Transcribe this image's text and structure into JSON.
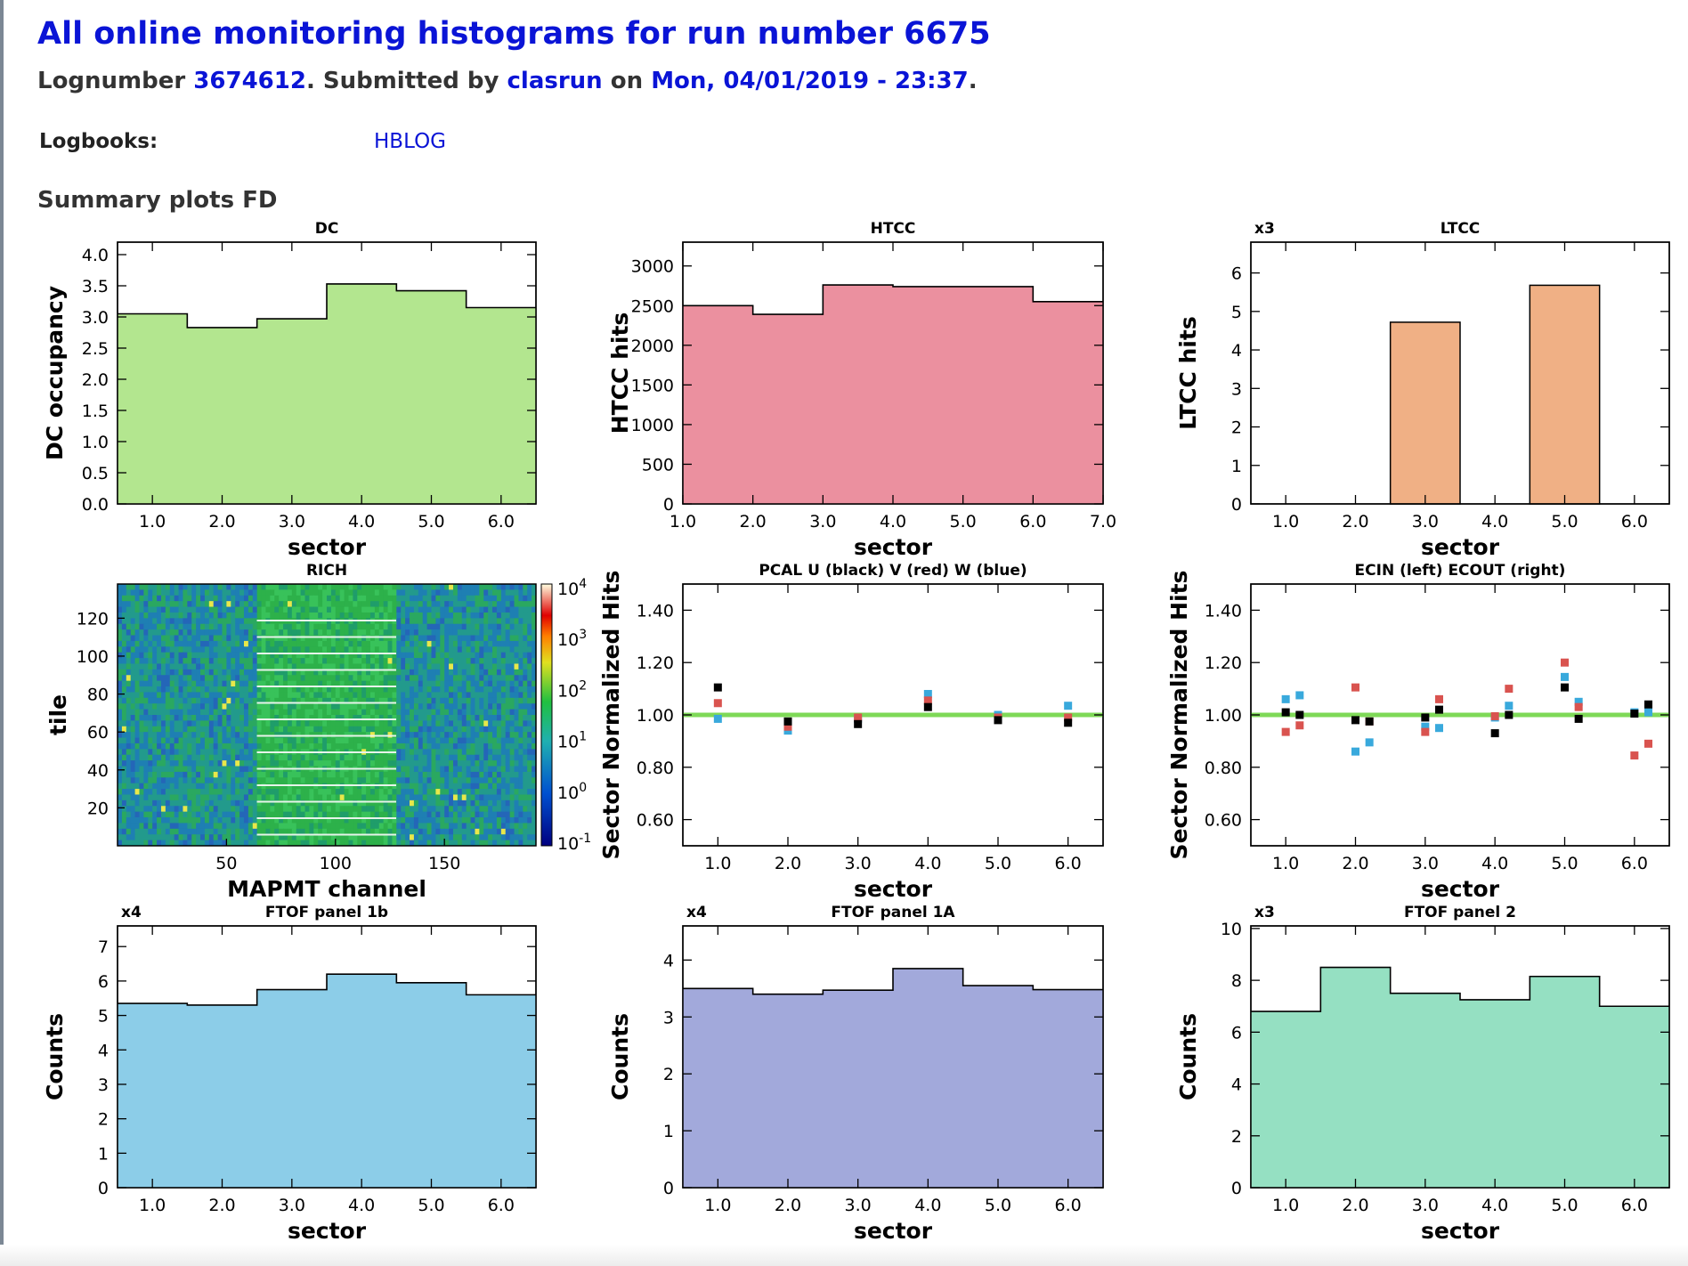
{
  "header": {
    "title": "All online monitoring histograms for run number 6675",
    "lognumber_label": "Lognumber",
    "lognumber": "3674612",
    "submitted_label": ". Submitted by",
    "submitter": "clasrun",
    "on_label": "on",
    "date": "Mon, 04/01/2019 - 23:37",
    "end": "."
  },
  "logbooks": {
    "label": "Logbooks:",
    "value": "HBLOG"
  },
  "section_title": "Summary plots FD",
  "colors": {
    "link": "#0a14d6",
    "dc": "#b3e68f",
    "htcc": "#eb909f",
    "ltcc": "#f0b085",
    "ftof1b": "#8ccde8",
    "ftof1a": "#a2a9db",
    "ftof2": "#95e0c2",
    "reference_line": "#7ed957",
    "pcal_u": "#000000",
    "pcal_v": "#d9534f",
    "pcal_w": "#39a9dc"
  },
  "chart_data": [
    {
      "id": "dc",
      "type": "bar",
      "title": "DC",
      "xlabel": "sector",
      "ylabel": "DC occupancy",
      "multiplier": "",
      "xlim": [
        0.5,
        6.5
      ],
      "ylim": [
        0,
        4.2
      ],
      "xticks": [
        "1.0",
        "2.0",
        "3.0",
        "4.0",
        "5.0",
        "6.0"
      ],
      "yticks": [
        "0.0",
        "0.5",
        "1.0",
        "1.5",
        "2.0",
        "2.5",
        "3.0",
        "3.5",
        "4.0"
      ],
      "bin_edges": [
        0.5,
        1.5,
        2.5,
        3.5,
        4.5,
        5.5,
        6.5
      ],
      "values": [
        3.05,
        2.83,
        2.97,
        3.53,
        3.42,
        3.15
      ]
    },
    {
      "id": "htcc",
      "type": "bar",
      "title": "HTCC",
      "xlabel": "sector",
      "ylabel": "HTCC hits",
      "multiplier": "",
      "xlim": [
        1.0,
        7.0
      ],
      "ylim": [
        0,
        3300
      ],
      "xticks": [
        "1.0",
        "2.0",
        "3.0",
        "4.0",
        "5.0",
        "6.0",
        "7.0"
      ],
      "yticks": [
        "0",
        "500",
        "1000",
        "1500",
        "2000",
        "2500",
        "3000"
      ],
      "bin_edges": [
        1,
        2,
        3,
        4,
        5,
        6,
        7
      ],
      "values": [
        2500,
        2390,
        2760,
        2740,
        2740,
        2550
      ]
    },
    {
      "id": "ltcc",
      "type": "bar",
      "title": "LTCC",
      "xlabel": "sector",
      "ylabel": "LTCC hits",
      "multiplier": "x3",
      "xlim": [
        0.5,
        6.5
      ],
      "ylim": [
        0,
        6.8
      ],
      "xticks": [
        "1.0",
        "2.0",
        "3.0",
        "4.0",
        "5.0",
        "6.0"
      ],
      "yticks": [
        "0",
        "1",
        "2",
        "3",
        "4",
        "5",
        "6"
      ],
      "bin_edges": [
        0.5,
        1.5,
        2.5,
        3.5,
        4.5,
        5.5,
        6.5
      ],
      "values": [
        0,
        0,
        4.72,
        0,
        5.68,
        0
      ]
    },
    {
      "id": "rich",
      "type": "heatmap",
      "title": "RICH",
      "xlabel": "MAPMT channel",
      "ylabel": "tile",
      "xlim": [
        0,
        192
      ],
      "ylim": [
        0,
        138
      ],
      "xticks": [
        "50",
        "100",
        "150"
      ],
      "yticks": [
        "20",
        "40",
        "60",
        "80",
        "100",
        "120"
      ],
      "colorbar_labels": [
        "10-1",
        "100",
        "101",
        "102",
        "103",
        "104"
      ]
    },
    {
      "id": "pcal",
      "type": "scatter",
      "title": "PCAL U (black) V (red) W (blue)",
      "xlabel": "sector",
      "ylabel": "Sector Normalized Hits",
      "xlim": [
        0.5,
        6.5
      ],
      "ylim": [
        0.5,
        1.5
      ],
      "xticks": [
        "1.0",
        "2.0",
        "3.0",
        "4.0",
        "5.0",
        "6.0"
      ],
      "yticks": [
        "0.60",
        "0.80",
        "1.00",
        "1.20",
        "1.40"
      ],
      "reference": 1.0,
      "series": [
        {
          "name": "U",
          "x": [
            1,
            2,
            3,
            4,
            5,
            6
          ],
          "y": [
            1.105,
            0.975,
            0.965,
            1.03,
            0.98,
            0.97
          ]
        },
        {
          "name": "V",
          "x": [
            1,
            2,
            3,
            4,
            5,
            6
          ],
          "y": [
            1.045,
            0.955,
            0.99,
            1.055,
            0.99,
            0.99
          ]
        },
        {
          "name": "W",
          "x": [
            1,
            2,
            3,
            4,
            5,
            6
          ],
          "y": [
            0.985,
            0.94,
            0.985,
            1.08,
            1.0,
            1.035
          ]
        }
      ]
    },
    {
      "id": "ec",
      "type": "scatter",
      "title": "ECIN (left) ECOUT (right)",
      "xlabel": "sector",
      "ylabel": "Sector Normalized Hits",
      "xlim": [
        0.5,
        6.5
      ],
      "ylim": [
        0.5,
        1.5
      ],
      "xticks": [
        "1.0",
        "2.0",
        "3.0",
        "4.0",
        "5.0",
        "6.0"
      ],
      "yticks": [
        "0.60",
        "0.80",
        "1.00",
        "1.20",
        "1.40"
      ],
      "reference": 1.0,
      "series": [
        {
          "name": "U",
          "x": [
            1,
            1.2,
            2,
            2.2,
            3,
            3.2,
            4,
            4.2,
            5,
            5.2,
            6,
            6.2
          ],
          "y": [
            1.01,
            1.0,
            0.98,
            0.975,
            0.99,
            1.02,
            0.93,
            1.0,
            1.105,
            0.985,
            1.005,
            1.04
          ]
        },
        {
          "name": "V",
          "x": [
            1,
            1.2,
            2,
            2.2,
            3,
            3.2,
            4,
            4.2,
            5,
            5.2,
            6,
            6.2
          ],
          "y": [
            0.935,
            0.96,
            1.105,
            0.975,
            0.935,
            1.06,
            0.995,
            1.1,
            1.2,
            1.03,
            0.845,
            0.89
          ]
        },
        {
          "name": "W",
          "x": [
            1,
            1.2,
            2,
            2.2,
            3,
            3.2,
            4,
            4.2,
            5,
            5.2,
            6,
            6.2
          ],
          "y": [
            1.06,
            1.075,
            0.86,
            0.895,
            0.955,
            0.95,
            0.99,
            1.035,
            1.145,
            1.05,
            1.01,
            1.01
          ]
        }
      ]
    },
    {
      "id": "ftof1b",
      "type": "bar",
      "title": "FTOF panel 1b",
      "xlabel": "sector",
      "ylabel": "Counts",
      "multiplier": "x4",
      "xlim": [
        0.5,
        6.5
      ],
      "ylim": [
        0,
        7.6
      ],
      "xticks": [
        "1.0",
        "2.0",
        "3.0",
        "4.0",
        "5.0",
        "6.0"
      ],
      "yticks": [
        "0",
        "1",
        "2",
        "3",
        "4",
        "5",
        "6",
        "7"
      ],
      "bin_edges": [
        0.5,
        1.5,
        2.5,
        3.5,
        4.5,
        5.5,
        6.5
      ],
      "values": [
        5.35,
        5.3,
        5.75,
        6.2,
        5.95,
        5.6
      ]
    },
    {
      "id": "ftof1a",
      "type": "bar",
      "title": "FTOF panel 1A",
      "xlabel": "sector",
      "ylabel": "Counts",
      "multiplier": "x4",
      "xlim": [
        0.5,
        6.5
      ],
      "ylim": [
        0,
        4.6
      ],
      "xticks": [
        "1.0",
        "2.0",
        "3.0",
        "4.0",
        "5.0",
        "6.0"
      ],
      "yticks": [
        "0",
        "1",
        "2",
        "3",
        "4"
      ],
      "bin_edges": [
        0.5,
        1.5,
        2.5,
        3.5,
        4.5,
        5.5,
        6.5
      ],
      "values": [
        3.5,
        3.4,
        3.47,
        3.85,
        3.55,
        3.48
      ]
    },
    {
      "id": "ftof2",
      "type": "bar",
      "title": "FTOF panel 2",
      "xlabel": "sector",
      "ylabel": "Counts",
      "multiplier": "x3",
      "xlim": [
        0.5,
        6.5
      ],
      "ylim": [
        0,
        10.1
      ],
      "xticks": [
        "1.0",
        "2.0",
        "3.0",
        "4.0",
        "5.0",
        "6.0"
      ],
      "yticks": [
        "0",
        "2",
        "4",
        "6",
        "8",
        "10"
      ],
      "bin_edges": [
        0.5,
        1.5,
        2.5,
        3.5,
        4.5,
        5.5,
        6.5
      ],
      "values": [
        6.8,
        8.5,
        7.5,
        7.25,
        8.15,
        7.0
      ]
    }
  ]
}
